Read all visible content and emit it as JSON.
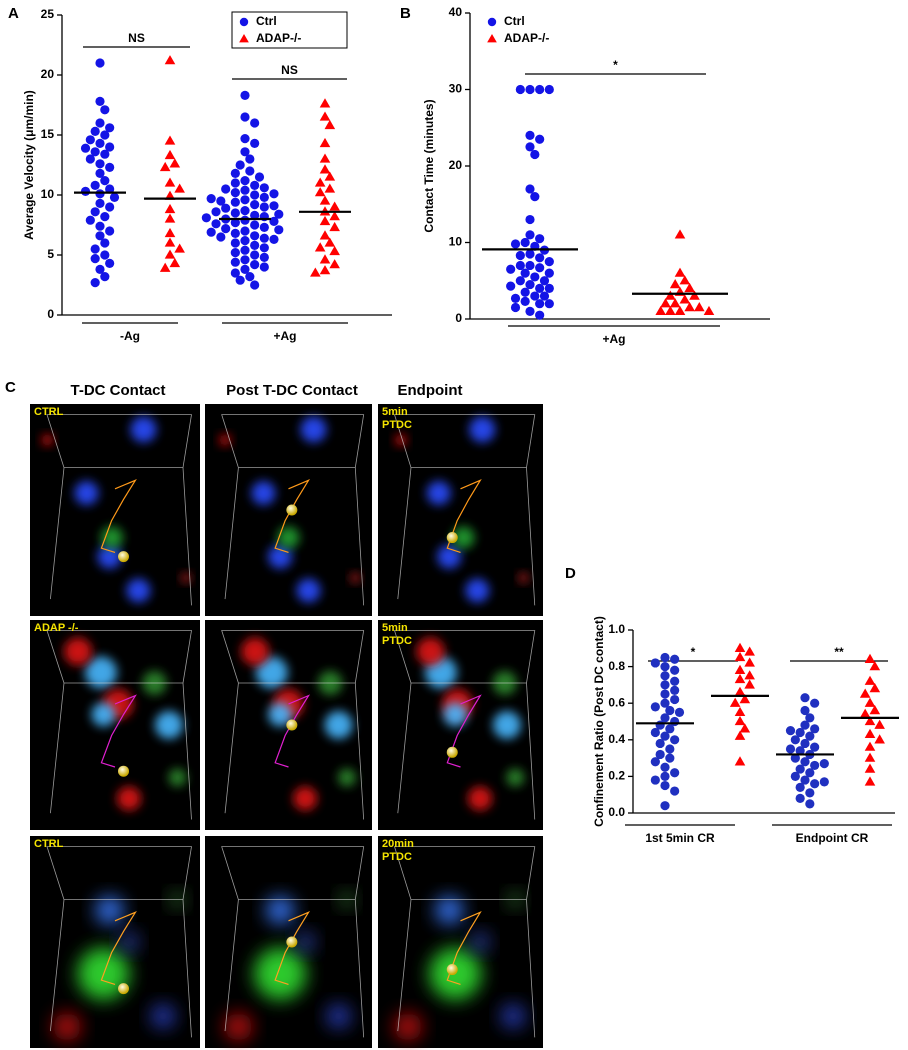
{
  "chart_data": [
    {
      "type": "dot",
      "panel_label": "A",
      "ylabel": "Average Velocity (μm/min)",
      "ylim": [
        0,
        25
      ],
      "yticks": [
        0,
        5,
        10,
        15,
        20,
        25
      ],
      "groups": [
        "-Ag",
        "+Ag"
      ],
      "annotations": [
        "NS",
        "NS"
      ],
      "legend": "upper right",
      "series": [
        {
          "name": "Ctrl",
          "color": "#1414e6",
          "marker": "circle",
          "values": [
            [
              21,
              17.8,
              17.1,
              16.0,
              15.6,
              15.3,
              15.0,
              14.6,
              14.3,
              14.0,
              13.9,
              13.6,
              13.4,
              13.0,
              12.6,
              12.3,
              11.8,
              11.2,
              10.8,
              10.5,
              10.3,
              10.1,
              9.8,
              9.3,
              9.0,
              8.6,
              8.2,
              7.9,
              7.4,
              7.0,
              6.6,
              6.0,
              5.5,
              5.0,
              4.7,
              4.3,
              3.8,
              3.2,
              2.7
            ],
            [
              18.3,
              16.5,
              16.0,
              14.7,
              14.3,
              13.6,
              13.0,
              12.5,
              12.0,
              11.8,
              11.5,
              11.2,
              11.0,
              10.8,
              10.6,
              10.4,
              10.2,
              10.0,
              9.8,
              9.6,
              9.4,
              9.2,
              9.0,
              8.9,
              8.7,
              8.5,
              8.3,
              8.2,
              8.0,
              7.9,
              7.7,
              7.5,
              7.3,
              7.2,
              7.0,
              6.8,
              6.6,
              6.4,
              6.2,
              6.0,
              5.8,
              5.6,
              5.4,
              5.2,
              5.0,
              4.8,
              4.6,
              4.4,
              4.2,
              4.0,
              3.8,
              3.5,
              3.2,
              2.9,
              2.5,
              9.5,
              9.1,
              8.6,
              8.4,
              8.1,
              7.8,
              7.6,
              7.1,
              6.9,
              6.5,
              10.5,
              10.1,
              9.7,
              6.3
            ]
          ],
          "means": [
            10.2,
            8.0
          ]
        },
        {
          "name": "ADAP-/-",
          "color": "#ff0000",
          "marker": "triangle",
          "values": [
            [
              21.2,
              14.5,
              13.3,
              12.6,
              12.3,
              11.0,
              10.5,
              9.9,
              8.8,
              8.0,
              6.8,
              6.0,
              5.5,
              5.0,
              4.3,
              3.9
            ],
            [
              17.6,
              16.5,
              15.8,
              14.3,
              13.0,
              12.1,
              11.5,
              11.0,
              10.5,
              10.2,
              9.5,
              9.0,
              8.6,
              8.2,
              7.8,
              7.3,
              6.6,
              6.0,
              5.6,
              5.3,
              4.6,
              4.2,
              3.7,
              3.5
            ]
          ],
          "means": [
            9.7,
            8.6
          ]
        }
      ]
    },
    {
      "type": "dot",
      "panel_label": "B",
      "ylabel": "Contact Time (minutes)",
      "ylim": [
        0,
        40
      ],
      "yticks": [
        0,
        10,
        20,
        30,
        40
      ],
      "groups": [
        "+Ag"
      ],
      "annotations": [
        "*"
      ],
      "legend": "upper left",
      "series": [
        {
          "name": "Ctrl",
          "color": "#1414e6",
          "marker": "circle",
          "values": [
            [
              30,
              30,
              30,
              30,
              24,
              23.5,
              22.5,
              21.5,
              17,
              16,
              13,
              11,
              10.5,
              10,
              9.8,
              9.5,
              9,
              8.5,
              8.3,
              8,
              7.5,
              7,
              7,
              6.7,
              6.5,
              6,
              6,
              5.5,
              5,
              5,
              4.5,
              4.3,
              4,
              4,
              3.5,
              3,
              3,
              2.7,
              2.3,
              2,
              2,
              1.5,
              1,
              0.5
            ]
          ],
          "means": [
            9.1
          ]
        },
        {
          "name": "ADAP-/-",
          "color": "#ff0000",
          "marker": "triangle",
          "values": [
            [
              11,
              6,
              5,
              4.5,
              4,
              3.5,
              3,
              3,
              2.5,
              2,
              2,
              1.5,
              1.5,
              1,
              1,
              1,
              1
            ]
          ],
          "means": [
            3.3
          ]
        }
      ]
    },
    {
      "type": "dot",
      "panel_label": "D",
      "ylabel": "Confinement Ratio (Post DC contact)",
      "ylim": [
        0,
        1
      ],
      "yticks": [
        {
          "value": 0,
          "label": "0.0"
        },
        0.2,
        0.4,
        0.6,
        0.8,
        {
          "value": 1,
          "label": "1.0"
        }
      ],
      "groups": [
        "1st 5min CR",
        "Endpoint CR"
      ],
      "annotations": [
        "*",
        "**"
      ],
      "series": [
        {
          "name": "Ctrl",
          "color": "#2030c0",
          "marker": "circle",
          "values": [
            [
              0.85,
              0.84,
              0.82,
              0.8,
              0.78,
              0.75,
              0.72,
              0.7,
              0.67,
              0.65,
              0.62,
              0.6,
              0.58,
              0.56,
              0.55,
              0.52,
              0.5,
              0.48,
              0.46,
              0.44,
              0.42,
              0.4,
              0.38,
              0.35,
              0.32,
              0.3,
              0.28,
              0.25,
              0.22,
              0.2,
              0.18,
              0.15,
              0.12,
              0.04
            ],
            [
              0.63,
              0.6,
              0.56,
              0.52,
              0.48,
              0.46,
              0.44,
              0.42,
              0.4,
              0.38,
              0.36,
              0.34,
              0.32,
              0.3,
              0.28,
              0.26,
              0.24,
              0.22,
              0.2,
              0.18,
              0.16,
              0.14,
              0.11,
              0.08,
              0.05,
              0.45,
              0.35,
              0.27,
              0.17
            ]
          ],
          "means": [
            0.49,
            0.32
          ]
        },
        {
          "name": "ADAP-/-",
          "color": "#ff0000",
          "marker": "triangle",
          "values": [
            [
              0.9,
              0.88,
              0.85,
              0.82,
              0.78,
              0.75,
              0.73,
              0.7,
              0.66,
              0.62,
              0.6,
              0.55,
              0.5,
              0.46,
              0.42,
              0.28
            ],
            [
              0.84,
              0.8,
              0.72,
              0.68,
              0.65,
              0.6,
              0.56,
              0.54,
              0.5,
              0.48,
              0.43,
              0.4,
              0.36,
              0.3,
              0.24,
              0.17
            ]
          ],
          "means": [
            0.64,
            0.52
          ]
        }
      ]
    }
  ],
  "figure_c": {
    "label": "C",
    "columns": [
      "T-DC Contact",
      "Post T-DC Contact",
      "Endpoint"
    ],
    "tiles": [
      [
        [
          "CTRL"
        ],
        [],
        [
          "5min",
          "PTDC"
        ]
      ],
      [
        [
          "ADAP -/-"
        ],
        [],
        [
          "5min",
          "PTDC"
        ]
      ],
      [
        [
          "CTRL"
        ],
        [],
        [
          "20min",
          "PTDC"
        ]
      ]
    ]
  }
}
